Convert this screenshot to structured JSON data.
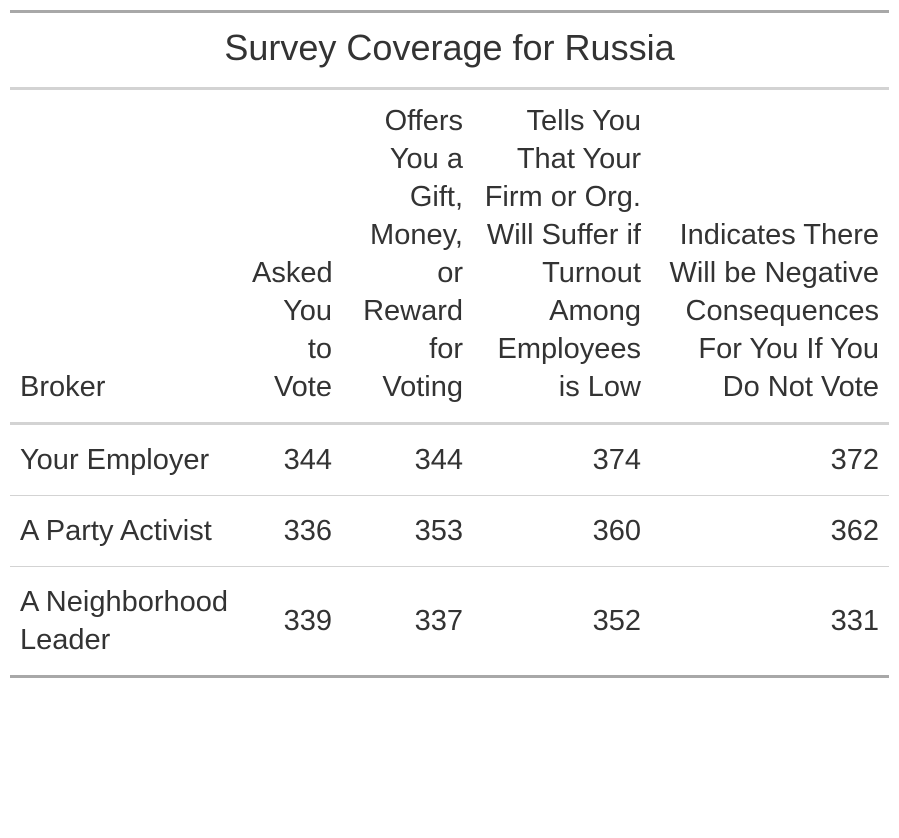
{
  "title": "Survey Coverage for Russia",
  "columns": [
    "Broker",
    "Asked You to Vote",
    "Offers You a Gift, Money, or Reward for Voting",
    "Tells You That Your Firm or Org. Will Suffer if Turnout Among Employees is Low",
    "Indicates There Will be Negative Consequences For You If You Do Not Vote"
  ],
  "rows": [
    {
      "broker": "Your Employer",
      "values": [
        "344",
        "344",
        "374",
        "372"
      ]
    },
    {
      "broker": "A Party Activist",
      "values": [
        "336",
        "353",
        "360",
        "362"
      ]
    },
    {
      "broker": "A Neighborhood Leader",
      "values": [
        "339",
        "337",
        "352",
        "331"
      ]
    }
  ]
}
